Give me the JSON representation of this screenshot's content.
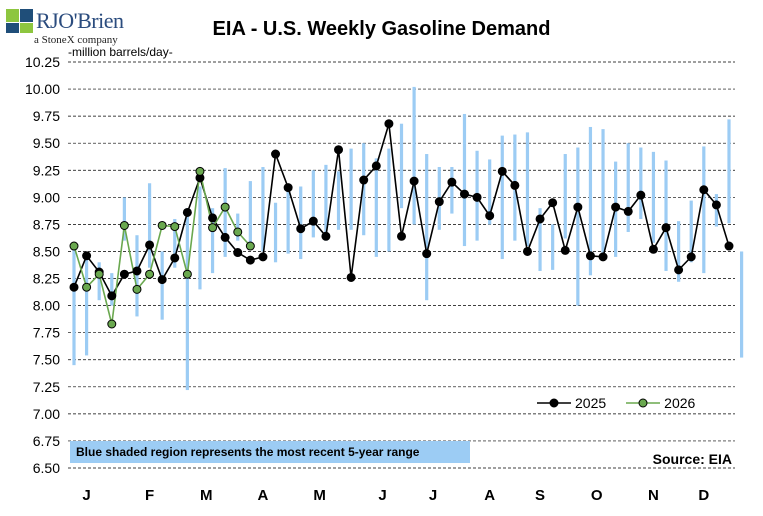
{
  "logo": {
    "brand": "RJO'Brien",
    "sub": "a StoneX company"
  },
  "header": {
    "title": "EIA - U.S. Weekly Gasoline Demand",
    "unit": "-million barrels/day-"
  },
  "note": "Blue shaded region represents the most recent 5-year range",
  "source": "Source: EIA",
  "colors": {
    "range": "#9cccf4",
    "series2025": "#000000",
    "series2026": "#6aa84f",
    "grid": "#000000"
  },
  "chart_data": {
    "type": "line",
    "title": "EIA - U.S. Weekly Gasoline Demand",
    "ylabel": "-million barrels/day-",
    "ylim": [
      6.5,
      10.25
    ],
    "yticks": [
      "10.25",
      "10.00",
      "9.75",
      "9.50",
      "9.25",
      "9.00",
      "8.75",
      "8.50",
      "8.25",
      "8.00",
      "7.75",
      "7.50",
      "7.25",
      "7.00",
      "6.75",
      "6.50"
    ],
    "month_labels": [
      "J",
      "F",
      "M",
      "A",
      "M",
      "J",
      "J",
      "A",
      "S",
      "O",
      "N",
      "D"
    ],
    "month_weeks": [
      2.0,
      7.0,
      11.5,
      16.0,
      20.5,
      25.5,
      29.5,
      34.0,
      38.0,
      42.5,
      47.0,
      51.0
    ],
    "grid": "horizontal dashed",
    "legend_position": "bottom-right",
    "range_5yr": [
      [
        7.45,
        8.55
      ],
      [
        7.54,
        8.45
      ],
      [
        8.05,
        8.4
      ],
      [
        8.0,
        8.3
      ],
      [
        8.6,
        9.0
      ],
      [
        7.9,
        8.65
      ],
      [
        8.35,
        9.13
      ],
      [
        7.87,
        8.5
      ],
      [
        8.35,
        8.8
      ],
      [
        7.22,
        8.9
      ],
      [
        8.15,
        9.1
      ],
      [
        8.3,
        8.9
      ],
      [
        8.45,
        9.27
      ],
      [
        8.6,
        8.85
      ],
      [
        8.55,
        9.15
      ],
      [
        8.5,
        9.28
      ],
      [
        8.4,
        8.95
      ],
      [
        8.48,
        9.1
      ],
      [
        8.43,
        9.1
      ],
      [
        8.63,
        9.25
      ],
      [
        8.6,
        9.3
      ],
      [
        8.7,
        9.24
      ],
      [
        8.7,
        9.45
      ],
      [
        8.65,
        9.5
      ],
      [
        8.45,
        9.36
      ],
      [
        8.5,
        9.45
      ],
      [
        8.9,
        9.68
      ],
      [
        8.75,
        10.02
      ],
      [
        8.05,
        9.4
      ],
      [
        8.7,
        9.28
      ],
      [
        8.85,
        9.28
      ],
      [
        8.55,
        9.77
      ],
      [
        8.6,
        9.43
      ],
      [
        8.75,
        9.35
      ],
      [
        8.43,
        9.57
      ],
      [
        8.6,
        9.58
      ],
      [
        8.55,
        9.6
      ],
      [
        8.32,
        8.9
      ],
      [
        8.33,
        8.75
      ],
      [
        8.62,
        9.4
      ],
      [
        8.0,
        9.46
      ],
      [
        8.28,
        9.65
      ],
      [
        8.43,
        9.63
      ],
      [
        8.45,
        9.33
      ],
      [
        8.68,
        9.5
      ],
      [
        8.8,
        9.46
      ],
      [
        8.58,
        9.42
      ],
      [
        8.32,
        9.34
      ],
      [
        8.22,
        8.78
      ],
      [
        8.4,
        8.97
      ],
      [
        8.3,
        9.47
      ],
      [
        8.73,
        9.03
      ],
      [
        8.76,
        9.72
      ],
      [
        7.52,
        8.5
      ]
    ],
    "series": [
      {
        "name": "2025",
        "values": [
          8.17,
          8.46,
          8.31,
          8.09,
          8.29,
          8.32,
          8.56,
          8.24,
          8.44,
          8.86,
          9.18,
          8.81,
          8.63,
          8.49,
          8.42,
          8.45,
          9.4,
          9.09,
          8.71,
          8.78,
          8.64,
          9.44,
          8.26,
          9.16,
          9.29,
          9.68,
          8.64,
          9.15,
          8.48,
          8.96,
          9.14,
          9.03,
          9.0,
          8.83,
          9.24,
          9.11,
          8.5,
          8.8,
          8.95,
          8.51,
          8.91,
          8.46,
          8.45,
          8.91,
          8.87,
          9.02,
          8.52,
          8.72,
          8.33,
          8.45,
          9.07,
          8.93,
          8.55
        ]
      },
      {
        "name": "2026",
        "values": [
          8.55,
          8.17,
          8.29,
          7.83,
          8.74,
          8.15,
          8.29,
          8.74,
          8.73,
          8.29,
          9.24,
          8.72,
          8.91,
          8.68,
          8.55
        ]
      }
    ]
  }
}
